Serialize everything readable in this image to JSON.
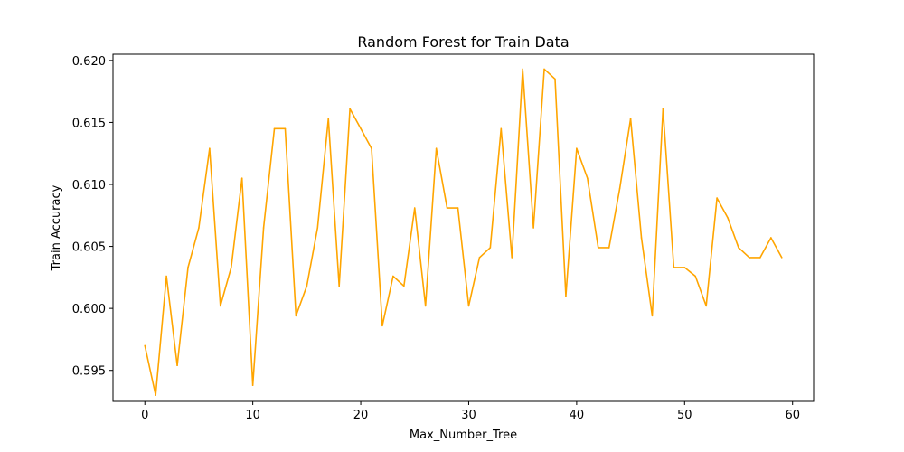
{
  "chart_data": {
    "type": "line",
    "title": "Random Forest for Train Data",
    "xlabel": "Max_Number_Tree",
    "ylabel": "Train Accuracy",
    "xlim": [
      -2.95,
      61.95
    ],
    "ylim": [
      0.5925,
      0.6205
    ],
    "xticks": [
      0,
      10,
      20,
      30,
      40,
      50,
      60
    ],
    "yticks": [
      0.595,
      0.6,
      0.605,
      0.61,
      0.615,
      0.62
    ],
    "xtick_labels": [
      "0",
      "10",
      "20",
      "30",
      "40",
      "50",
      "60"
    ],
    "ytick_labels": [
      "0.595",
      "0.600",
      "0.605",
      "0.610",
      "0.615",
      "0.620"
    ],
    "grid": false,
    "legend": "none",
    "series": [
      {
        "color": "#ffa500",
        "x": [
          0,
          1,
          2,
          3,
          4,
          5,
          6,
          7,
          8,
          9,
          10,
          11,
          12,
          13,
          14,
          15,
          16,
          17,
          18,
          19,
          20,
          21,
          22,
          23,
          24,
          25,
          26,
          27,
          28,
          29,
          30,
          31,
          32,
          33,
          34,
          35,
          36,
          37,
          38,
          39,
          40,
          41,
          42,
          43,
          44,
          45,
          46,
          47,
          48,
          49,
          50,
          51,
          52,
          53,
          54,
          55,
          56,
          57,
          58,
          59
        ],
        "values": [
          0.597,
          0.593,
          0.6026,
          0.5954,
          0.6033,
          0.6065,
          0.6129,
          0.6002,
          0.6033,
          0.6105,
          0.5938,
          0.6065,
          0.6145,
          0.6145,
          0.5994,
          0.6018,
          0.6065,
          0.6153,
          0.6018,
          0.6161,
          0.6145,
          0.6129,
          0.5986,
          0.6026,
          0.6018,
          0.6081,
          0.6002,
          0.6129,
          0.6081,
          0.6081,
          0.6002,
          0.6041,
          0.6049,
          0.6145,
          0.6041,
          0.6193,
          0.6065,
          0.6193,
          0.6185,
          0.601,
          0.6129,
          0.6105,
          0.6049,
          0.6049,
          0.6097,
          0.6153,
          0.6057,
          0.5994,
          0.6161,
          0.6033,
          0.6033,
          0.6026,
          0.6002,
          0.6089,
          0.6073,
          0.6049,
          0.6041,
          0.6041,
          0.6057,
          0.6041
        ]
      }
    ]
  }
}
